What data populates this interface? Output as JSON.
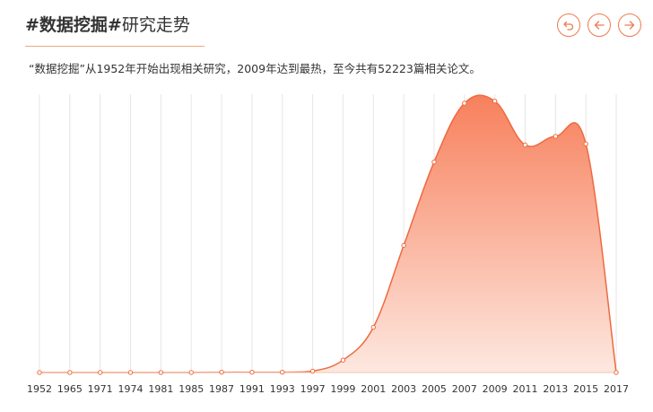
{
  "header": {
    "keyword": "#数据挖掘#",
    "suffix": "研究走势",
    "description": "“数据挖掘”从1952年开始出现相关研究，2009年达到最热，至今共有52223篇相关论文。"
  },
  "nav": {
    "buttons": [
      {
        "name": "reset-button",
        "icon": "undo-icon"
      },
      {
        "name": "prev-button",
        "icon": "arrow-left-icon"
      },
      {
        "name": "next-button",
        "icon": "arrow-right-icon"
      }
    ]
  },
  "colors": {
    "accent": "#ee6a3f",
    "area_top": "#f7805c",
    "area_bottom": "#fde8e0",
    "grid": "#e6e6e6"
  },
  "chart_data": {
    "type": "area",
    "x": [
      "1952",
      "1965",
      "1971",
      "1974",
      "1981",
      "1985",
      "1987",
      "1991",
      "1993",
      "1997",
      "1999",
      "2001",
      "2003",
      "2005",
      "2007",
      "2009",
      "2011",
      "2013",
      "2015",
      "2017"
    ],
    "categories": [
      "1952",
      "1965",
      "1971",
      "1974",
      "1981",
      "1985",
      "1987",
      "1991",
      "1993",
      "1997",
      "1999",
      "2001",
      "2003",
      "2005",
      "2007",
      "2009",
      "2011",
      "2013",
      "2015",
      "2017"
    ],
    "values": [
      0,
      0,
      0,
      0,
      0,
      0,
      1,
      1,
      1,
      5,
      46,
      168,
      472,
      782,
      1000,
      1008,
      845,
      877,
      849,
      0
    ],
    "ylim": [
      0,
      1100
    ],
    "grid": "vertical",
    "point_markers": true
  }
}
